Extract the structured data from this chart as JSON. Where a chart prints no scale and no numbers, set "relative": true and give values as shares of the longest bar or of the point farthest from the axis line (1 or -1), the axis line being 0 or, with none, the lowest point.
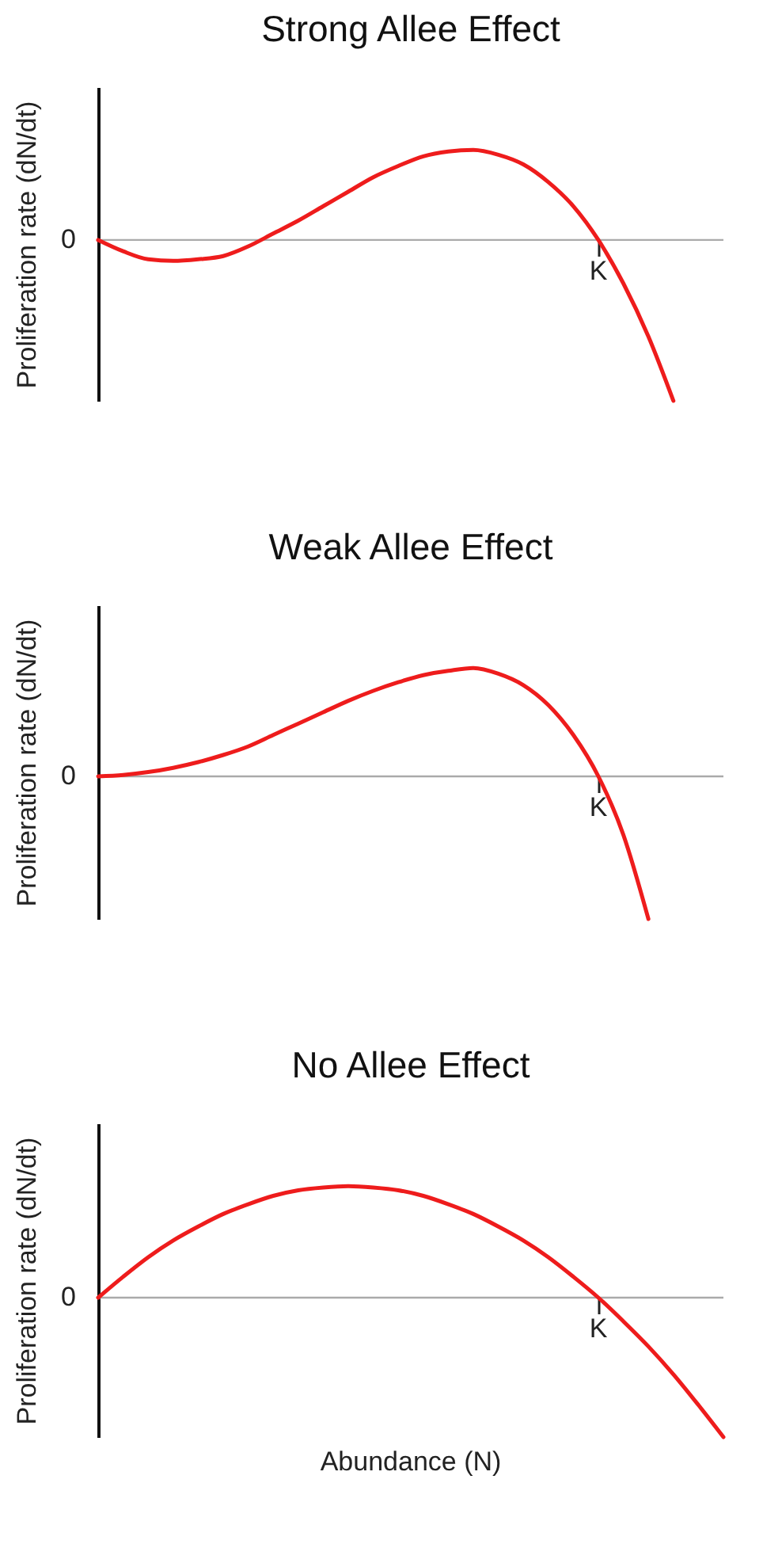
{
  "chart_data": [
    {
      "type": "line",
      "title": "Strong Allee Effect",
      "ylabel": "Proliferation rate (dN/dt)",
      "relative": true,
      "categories": [
        null,
        null,
        null,
        null,
        null,
        null,
        null,
        null,
        null,
        null,
        null,
        null,
        null,
        null,
        null,
        null,
        null,
        null,
        null,
        null,
        null,
        null,
        null,
        null,
        null,
        null
      ],
      "series": [
        {
          "color": "#ee1c1c",
          "values": [
            0,
            -0.07,
            -0.12,
            -0.13,
            -0.12,
            -0.1,
            -0.04,
            0.04,
            0.12,
            0.21,
            0.3,
            0.39,
            0.46,
            0.52,
            0.55,
            0.56,
            0.53,
            0.47,
            0.36,
            0.21,
            0,
            -0.27,
            -0.6,
            -1,
            null,
            null
          ]
        }
      ],
      "ref_lines": [
        {
          "axis": "y",
          "value": 0,
          "label": "0",
          "color": "#aaaaaa"
        }
      ],
      "annotations": [
        {
          "text": "K",
          "y": 0
        }
      ]
    },
    {
      "type": "line",
      "title": "Weak Allee Effect",
      "ylabel": "Proliferation rate (dN/dt)",
      "relative": true,
      "categories": [
        null,
        null,
        null,
        null,
        null,
        null,
        null,
        null,
        null,
        null,
        null,
        null,
        null,
        null,
        null,
        null,
        null,
        null,
        null,
        null,
        null,
        null,
        null,
        null,
        null,
        null
      ],
      "series": [
        {
          "color": "#ee1c1c",
          "values": [
            0,
            0.01,
            0.03,
            0.06,
            0.1,
            0.15,
            0.21,
            0.29,
            0.37,
            0.45,
            0.53,
            0.6,
            0.66,
            0.71,
            0.74,
            0.76,
            0.72,
            0.64,
            0.5,
            0.29,
            0,
            -0.41,
            -1,
            null,
            null,
            null
          ]
        }
      ],
      "ref_lines": [
        {
          "axis": "y",
          "value": 0,
          "label": "0",
          "color": "#aaaaaa"
        }
      ],
      "annotations": [
        {
          "text": "K",
          "y": 0
        }
      ]
    },
    {
      "type": "line",
      "title": "No Allee Effect",
      "ylabel": "Proliferation rate (dN/dt)",
      "xlabel": "Abundance (N)",
      "relative": true,
      "categories": [
        null,
        null,
        null,
        null,
        null,
        null,
        null,
        null,
        null,
        null,
        null,
        null,
        null,
        null,
        null,
        null,
        null,
        null,
        null,
        null,
        null,
        null,
        null,
        null,
        null,
        null
      ],
      "series": [
        {
          "color": "#ee1c1c",
          "values": [
            0,
            0.15,
            0.29,
            0.41,
            0.51,
            0.6,
            0.67,
            0.73,
            0.77,
            0.79,
            0.8,
            0.79,
            0.77,
            0.73,
            0.67,
            0.6,
            0.51,
            0.41,
            0.29,
            0.15,
            0,
            -0.17,
            -0.35,
            -0.55,
            -0.77,
            -1
          ]
        }
      ],
      "ref_lines": [
        {
          "axis": "y",
          "value": 0,
          "label": "0",
          "color": "#aaaaaa"
        }
      ],
      "annotations": [
        {
          "text": "K",
          "y": 0
        }
      ]
    }
  ]
}
